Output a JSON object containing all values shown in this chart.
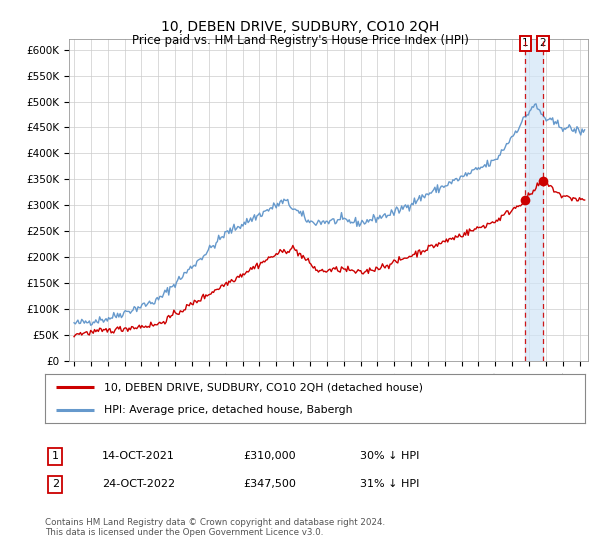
{
  "title": "10, DEBEN DRIVE, SUDBURY, CO10 2QH",
  "subtitle": "Price paid vs. HM Land Registry's House Price Index (HPI)",
  "ylabel_ticks": [
    "£0",
    "£50K",
    "£100K",
    "£150K",
    "£200K",
    "£250K",
    "£300K",
    "£350K",
    "£400K",
    "£450K",
    "£500K",
    "£550K",
    "£600K"
  ],
  "ytick_values": [
    0,
    50000,
    100000,
    150000,
    200000,
    250000,
    300000,
    350000,
    400000,
    450000,
    500000,
    550000,
    600000
  ],
  "ylim": [
    0,
    620000
  ],
  "xlim_start": 1994.7,
  "xlim_end": 2025.5,
  "hpi_color": "#6699cc",
  "price_color": "#cc0000",
  "vline_color": "#cc0000",
  "shade_color": "#d0e4f7",
  "legend_label_price": "10, DEBEN DRIVE, SUDBURY, CO10 2QH (detached house)",
  "legend_label_hpi": "HPI: Average price, detached house, Babergh",
  "transaction1_label": "1",
  "transaction1_date": "14-OCT-2021",
  "transaction1_price": "£310,000",
  "transaction1_hpi": "30% ↓ HPI",
  "transaction2_label": "2",
  "transaction2_date": "24-OCT-2022",
  "transaction2_price": "£347,500",
  "transaction2_hpi": "31% ↓ HPI",
  "footnote": "Contains HM Land Registry data © Crown copyright and database right 2024.\nThis data is licensed under the Open Government Licence v3.0.",
  "transaction1_x": 2021.79,
  "transaction2_x": 2022.82,
  "transaction1_y": 310000,
  "transaction2_y": 347500,
  "background_color": "#ffffff",
  "grid_color": "#cccccc"
}
